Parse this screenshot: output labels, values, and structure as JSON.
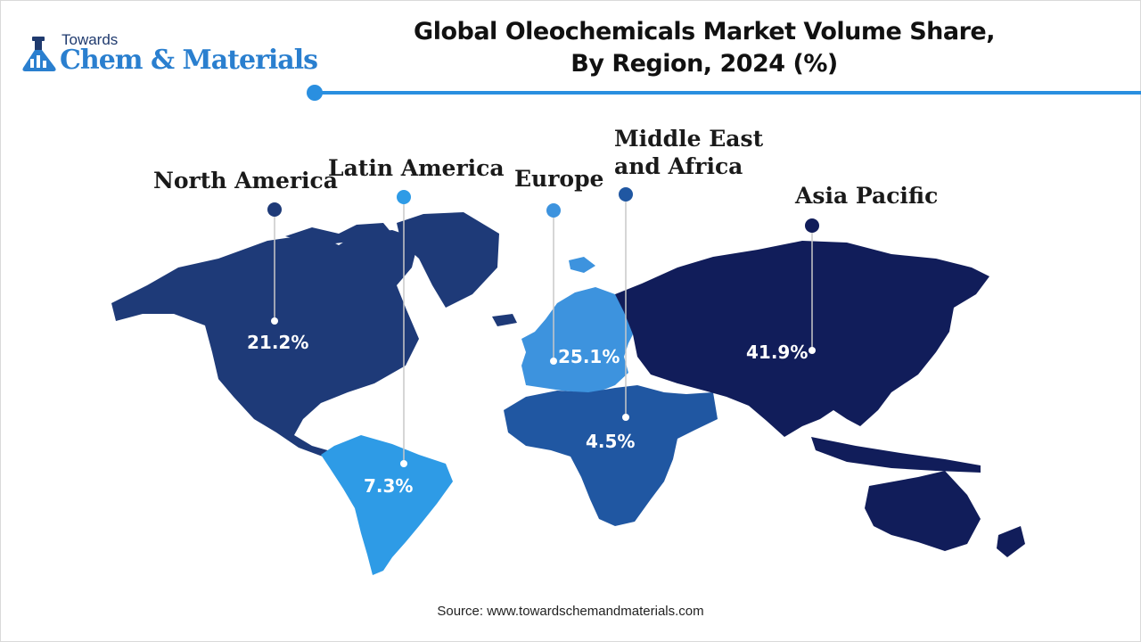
{
  "logo": {
    "top_text": "Towards",
    "brand_text": "Chem & Materials"
  },
  "title": {
    "line1": "Global Oleochemicals Market Volume Share,",
    "line2": "By Region, 2024 (%)"
  },
  "colors": {
    "north_america": "#1e3a78",
    "latin_america": "#2e9be6",
    "europe": "#3d93de",
    "middle_east_africa": "#2057a2",
    "asia_pacific": "#111d5a",
    "accent": "#2a8fe0"
  },
  "chart_data": {
    "type": "map",
    "title": "Global Oleochemicals Market Volume Share, By Region, 2024 (%)",
    "unit": "%",
    "regions": [
      {
        "name": "North America",
        "value": 21.2,
        "value_label": "21.2%"
      },
      {
        "name": "Latin America",
        "value": 7.3,
        "value_label": "7.3%"
      },
      {
        "name": "Europe",
        "value": 25.1,
        "value_label": "25.1%"
      },
      {
        "name": "Middle East and Africa",
        "value": 4.5,
        "value_label": "4.5%",
        "label_lines": [
          "Middle East",
          "and Africa"
        ]
      },
      {
        "name": "Asia Pacific",
        "value": 41.9,
        "value_label": "41.9%"
      }
    ]
  },
  "source": "Source: www.towardschemandmaterials.com"
}
